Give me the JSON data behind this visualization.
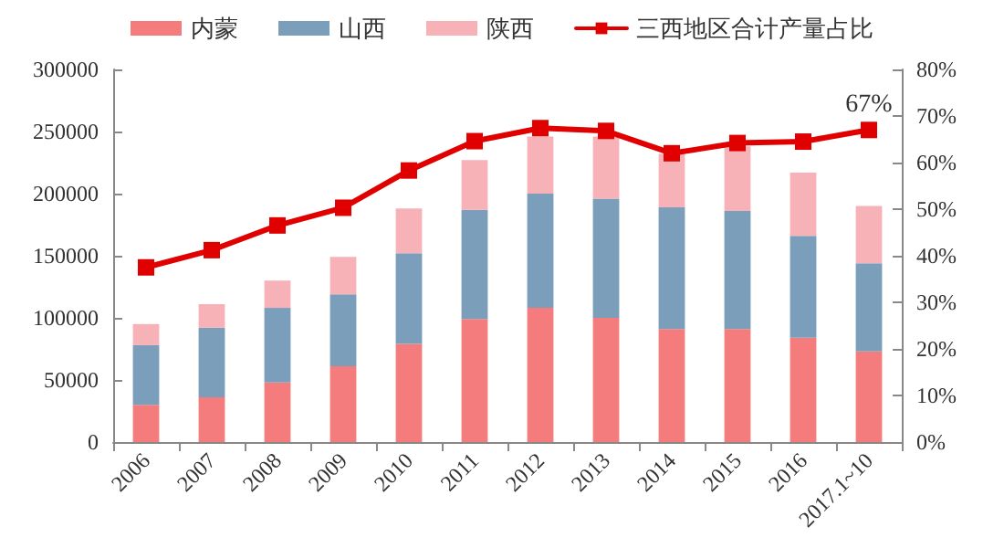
{
  "chart_data": {
    "type": "bar",
    "stacked": true,
    "legend": "top",
    "grid": false,
    "categories": [
      "2006",
      "2007",
      "2008",
      "2009",
      "2010",
      "2011",
      "2012",
      "2013",
      "2014",
      "2015",
      "2016",
      "2017.1~10"
    ],
    "series": [
      {
        "name": "内蒙",
        "color": "#f47c7c",
        "values": [
          30000,
          36000,
          48000,
          61000,
          79000,
          99000,
          108000,
          100000,
          91000,
          91000,
          84000,
          73000
        ]
      },
      {
        "name": "山西",
        "color": "#7b9fbb",
        "values": [
          48000,
          56000,
          60000,
          58000,
          73000,
          88000,
          92000,
          96000,
          98000,
          95000,
          82000,
          71000
        ]
      },
      {
        "name": "陕西",
        "color": "#f7b2b8",
        "values": [
          17000,
          19000,
          22000,
          30000,
          36000,
          40000,
          46000,
          50000,
          43000,
          52000,
          51000,
          46000
        ]
      },
      {
        "name": "三西地区合计产量占比",
        "type": "line",
        "axis": "y2",
        "color": "#e00000",
        "marker": "square",
        "line_style": "solid",
        "values": [
          37.5,
          41.2,
          46.5,
          50.3,
          58.3,
          64.6,
          67.4,
          66.8,
          62.0,
          64.2,
          64.5,
          67
        ]
      }
    ],
    "ylim": [
      0,
      300000
    ],
    "yticks": [
      0,
      50000,
      100000,
      150000,
      200000,
      250000,
      300000
    ],
    "y2lim": [
      0,
      80
    ],
    "y2ticks": [
      {
        "value": 0,
        "label": "0%"
      },
      {
        "value": 10,
        "label": "10%"
      },
      {
        "value": 20,
        "label": "20%"
      },
      {
        "value": 30,
        "label": "30%"
      },
      {
        "value": 40,
        "label": "40%"
      },
      {
        "value": 50,
        "label": "50%"
      },
      {
        "value": 60,
        "label": "60%"
      },
      {
        "value": 70,
        "label": "70%"
      },
      {
        "value": 80,
        "label": "80%"
      }
    ],
    "annotations": [
      "67%"
    ]
  }
}
